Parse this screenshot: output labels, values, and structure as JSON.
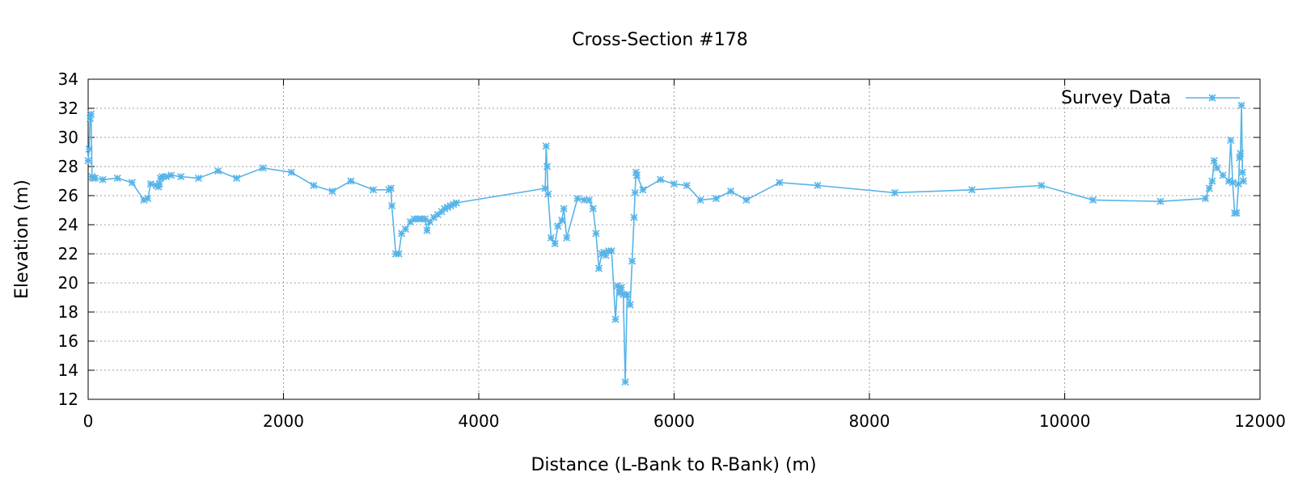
{
  "chart_data": {
    "type": "line",
    "title": "Cross-Section #178",
    "xlabel": "Distance (L-Bank to R-Bank) (m)",
    "ylabel": "Elevation (m)",
    "xlim": [
      0,
      12000
    ],
    "ylim": [
      12,
      34
    ],
    "xticks": [
      0,
      2000,
      4000,
      6000,
      8000,
      10000,
      12000
    ],
    "yticks": [
      12,
      14,
      16,
      18,
      20,
      22,
      24,
      26,
      28,
      30,
      32,
      34
    ],
    "grid": true,
    "legend_position": "top-right",
    "series": [
      {
        "name": "Survey Data",
        "color": "#56b4e9",
        "marker": "asterisk",
        "x": [
          0,
          10,
          20,
          30,
          40,
          50,
          70,
          150,
          300,
          450,
          570,
          610,
          640,
          700,
          720,
          730,
          740,
          760,
          800,
          850,
          950,
          1130,
          1330,
          1520,
          1790,
          2080,
          2310,
          2500,
          2690,
          2920,
          3080,
          3100,
          3110,
          3150,
          3180,
          3210,
          3250,
          3300,
          3340,
          3380,
          3410,
          3450,
          3470,
          3500,
          3540,
          3580,
          3620,
          3650,
          3680,
          3710,
          3740,
          3770,
          4680,
          4690,
          4700,
          4710,
          4740,
          4780,
          4810,
          4850,
          4870,
          4900,
          5010,
          5080,
          5130,
          5170,
          5200,
          5230,
          5260,
          5280,
          5300,
          5330,
          5360,
          5400,
          5420,
          5440,
          5460,
          5480,
          5500,
          5520,
          5550,
          5570,
          5590,
          5600,
          5610,
          5620,
          5680,
          5860,
          6000,
          6130,
          6270,
          6430,
          6580,
          6740,
          7080,
          7470,
          8260,
          9050,
          9760,
          10290,
          10980,
          11440,
          11480,
          11510,
          11530,
          11560,
          11620,
          11680,
          11700,
          11720,
          11740,
          11760,
          11780,
          11790,
          11800,
          11810,
          11820,
          11830
        ],
        "values": [
          28.4,
          29.2,
          31.3,
          31.6,
          27.3,
          27.2,
          27.2,
          27.1,
          27.2,
          26.9,
          25.7,
          25.8,
          26.8,
          26.7,
          26.6,
          26.8,
          27.2,
          27.3,
          27.3,
          27.4,
          27.3,
          27.2,
          27.7,
          27.2,
          27.9,
          27.6,
          26.7,
          26.3,
          27.0,
          26.4,
          26.4,
          26.5,
          25.3,
          22.0,
          22.0,
          23.4,
          23.7,
          24.2,
          24.4,
          24.4,
          24.4,
          24.4,
          23.6,
          24.2,
          24.5,
          24.7,
          24.9,
          25.1,
          25.2,
          25.3,
          25.4,
          25.5,
          26.5,
          29.4,
          28.0,
          26.1,
          23.1,
          22.7,
          23.9,
          24.3,
          25.1,
          23.1,
          25.8,
          25.7,
          25.7,
          25.1,
          23.4,
          21.0,
          22.0,
          22.1,
          21.9,
          22.2,
          22.2,
          17.5,
          19.8,
          19.3,
          19.7,
          19.2,
          13.2,
          19.2,
          18.5,
          21.5,
          24.5,
          26.2,
          27.6,
          27.4,
          26.4,
          27.1,
          26.8,
          26.7,
          25.7,
          25.8,
          26.3,
          25.7,
          26.9,
          26.7,
          26.2,
          26.4,
          26.7,
          25.7,
          25.6,
          25.8,
          26.5,
          27.0,
          28.4,
          27.9,
          27.4,
          27.0,
          29.8,
          26.9,
          24.8,
          24.8,
          26.8,
          28.6,
          28.9,
          32.2,
          27.6,
          27.0
        ]
      }
    ]
  }
}
